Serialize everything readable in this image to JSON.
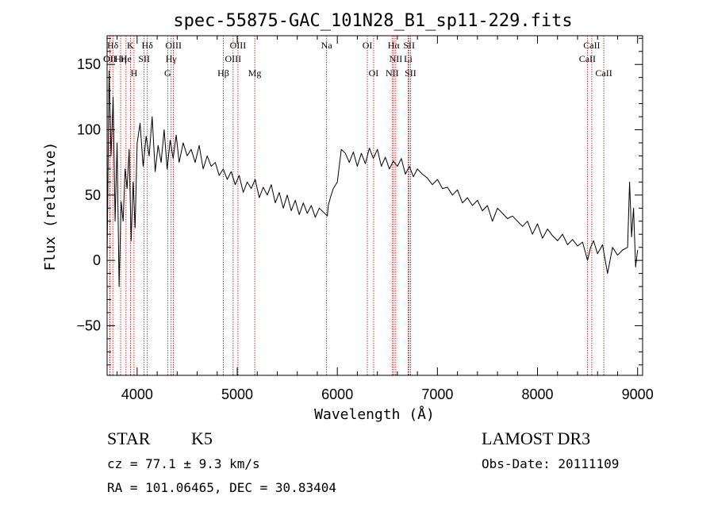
{
  "chart_data": {
    "type": "line",
    "title": "spec-55875-GAC_101N28_B1_sp11-229.fits",
    "xlabel": "Wavelength (Å)",
    "ylabel": "Flux (relative)",
    "xlim": [
      3700,
      9050
    ],
    "ylim": [
      -88,
      172
    ],
    "xticks": [
      4000,
      5000,
      6000,
      7000,
      8000,
      9000
    ],
    "yticks": [
      -50,
      0,
      50,
      100,
      150
    ],
    "series": [
      {
        "name": "flux",
        "x": [
          3700,
          3720,
          3740,
          3760,
          3780,
          3800,
          3820,
          3840,
          3860,
          3880,
          3900,
          3920,
          3940,
          3960,
          3980,
          4000,
          4030,
          4060,
          4090,
          4120,
          4150,
          4180,
          4210,
          4240,
          4270,
          4300,
          4330,
          4360,
          4390,
          4420,
          4460,
          4500,
          4540,
          4580,
          4620,
          4660,
          4700,
          4740,
          4780,
          4820,
          4860,
          4900,
          4940,
          4980,
          5020,
          5060,
          5100,
          5140,
          5180,
          5220,
          5260,
          5300,
          5340,
          5380,
          5420,
          5460,
          5500,
          5540,
          5580,
          5620,
          5660,
          5700,
          5740,
          5780,
          5820,
          5860,
          5900,
          5910,
          5930,
          5960,
          6000,
          6040,
          6080,
          6120,
          6160,
          6200,
          6240,
          6280,
          6320,
          6360,
          6400,
          6440,
          6480,
          6520,
          6560,
          6600,
          6640,
          6680,
          6720,
          6760,
          6800,
          6850,
          6900,
          6950,
          7000,
          7050,
          7100,
          7150,
          7200,
          7250,
          7300,
          7350,
          7400,
          7450,
          7500,
          7550,
          7600,
          7650,
          7700,
          7750,
          7800,
          7850,
          7900,
          7950,
          8000,
          8050,
          8100,
          8150,
          8200,
          8250,
          8300,
          8350,
          8400,
          8450,
          8500,
          8530,
          8560,
          8600,
          8650,
          8700,
          8750,
          8800,
          8850,
          8900,
          8920,
          8940,
          8960,
          8980,
          9000
        ],
        "y": [
          0,
          145,
          80,
          125,
          30,
          90,
          -20,
          45,
          30,
          70,
          55,
          85,
          15,
          60,
          25,
          90,
          105,
          72,
          95,
          80,
          110,
          68,
          88,
          75,
          100,
          70,
          92,
          78,
          96,
          75,
          90,
          80,
          85,
          75,
          88,
          70,
          80,
          72,
          75,
          65,
          70,
          62,
          68,
          58,
          65,
          52,
          60,
          55,
          62,
          48,
          56,
          50,
          58,
          44,
          52,
          40,
          50,
          38,
          46,
          35,
          44,
          36,
          42,
          33,
          40,
          37,
          34,
          42,
          48,
          55,
          60,
          85,
          82,
          75,
          83,
          72,
          82,
          74,
          86,
          78,
          85,
          72,
          79,
          70,
          76,
          72,
          78,
          66,
          72,
          64,
          70,
          66,
          63,
          58,
          62,
          55,
          56,
          50,
          54,
          44,
          48,
          42,
          46,
          38,
          42,
          30,
          40,
          36,
          32,
          34,
          30,
          26,
          30,
          20,
          28,
          17,
          24,
          19,
          15,
          20,
          12,
          16,
          11,
          14,
          0,
          10,
          15,
          5,
          12,
          -10,
          10,
          4,
          8,
          10,
          60,
          18,
          40,
          -5,
          8
        ]
      }
    ],
    "lines": [
      {
        "label": "Hδ",
        "x": 3757
      },
      {
        "label": "K",
        "x": 3933
      },
      {
        "label": "Hδ",
        "x": 4102
      },
      {
        "label": "OIII",
        "x": 4363
      },
      {
        "label": "OIII",
        "x": 5007
      },
      {
        "label": "Na",
        "x": 5893
      },
      {
        "label": "OI",
        "x": 6300
      },
      {
        "label": "Hα",
        "x": 6563
      },
      {
        "label": "SII",
        "x": 6717
      },
      {
        "label": "CaII",
        "x": 8542
      },
      {
        "label": "OII",
        "x": 3727
      },
      {
        "label": "He",
        "x": 3889
      },
      {
        "label": "SII",
        "x": 4070
      },
      {
        "label": "Hγ",
        "x": 4340
      },
      {
        "label": "OIII",
        "x": 4959
      },
      {
        "label": "NII",
        "x": 6584
      },
      {
        "label": "Li",
        "x": 6708
      },
      {
        "label": "CaII",
        "x": 8498
      },
      {
        "label": "OII",
        "x": 3727
      },
      {
        "label": "Hη",
        "x": 3835
      },
      {
        "label": "H",
        "x": 3969
      },
      {
        "label": "G",
        "x": 4305
      },
      {
        "label": "Hβ",
        "x": 4861
      },
      {
        "label": "Mg",
        "x": 5175
      },
      {
        "label": "OI",
        "x": 6363
      },
      {
        "label": "NII",
        "x": 6548
      },
      {
        "label": "SII",
        "x": 6731
      },
      {
        "label": "CaII",
        "x": 8662
      }
    ]
  },
  "info": {
    "class": "STAR",
    "subclass": "K5",
    "cz": "cz = 77.1 ± 9.3 km/s",
    "radec": "RA = 101.06465, DEC =  30.83404",
    "survey": "LAMOST DR3",
    "obsdate": "Obs-Date: 20111109"
  }
}
